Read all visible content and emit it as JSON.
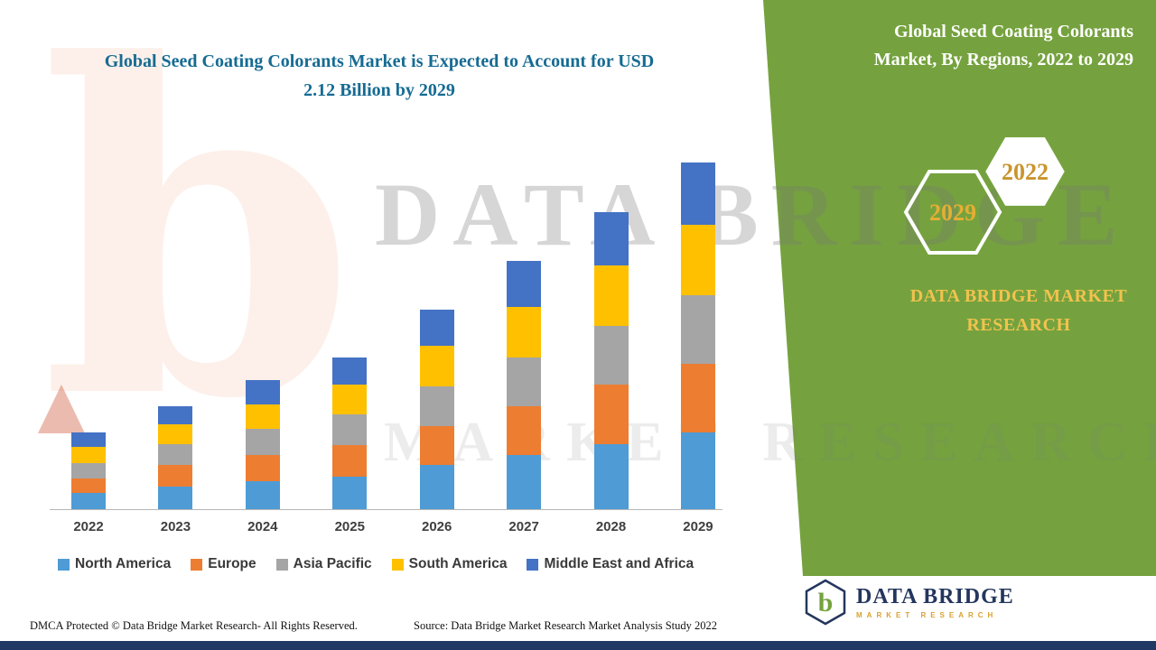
{
  "colors": {
    "green_panel": "#75A23E",
    "title_blue": "#166B93",
    "gold": "#D8A12F",
    "yellow_text": "#F2C24E",
    "navy": "#1F3864"
  },
  "left": {
    "title": "Global Seed Coating Colorants Market is Expected to Account for USD 2.12 Billion by 2029"
  },
  "right": {
    "title": "Global Seed Coating Colorants Market, By Regions, 2022 to 2029",
    "hexagon_back": "2022",
    "hexagon_front": "2029",
    "brand": "DATA BRIDGE MARKET RESEARCH"
  },
  "watermark": {
    "logo_letter": "b",
    "line1": "DATA BRIDGE",
    "line2": "MARKET RESEARCH"
  },
  "chart_data": {
    "type": "bar",
    "stacked": true,
    "title": "Global Seed Coating Colorants Market, By Regions, 2022 to 2029",
    "value_unit": "USD Billion",
    "categories": [
      "2022",
      "2023",
      "2024",
      "2025",
      "2026",
      "2027",
      "2028",
      "2029"
    ],
    "series": [
      {
        "name": "North America",
        "color": "#4E9BD5",
        "values": [
          0.1,
          0.14,
          0.17,
          0.2,
          0.27,
          0.33,
          0.4,
          0.47
        ]
      },
      {
        "name": "Europe",
        "color": "#ED7D31",
        "values": [
          0.09,
          0.13,
          0.16,
          0.19,
          0.24,
          0.3,
          0.36,
          0.42
        ]
      },
      {
        "name": "Asia Pacific",
        "color": "#A5A5A5",
        "values": [
          0.09,
          0.13,
          0.16,
          0.19,
          0.24,
          0.3,
          0.36,
          0.42
        ]
      },
      {
        "name": "South America",
        "color": "#FFC000",
        "values": [
          0.1,
          0.12,
          0.15,
          0.18,
          0.25,
          0.31,
          0.37,
          0.43
        ]
      },
      {
        "name": "Middle East and Africa",
        "color": "#4472C4",
        "values": [
          0.09,
          0.11,
          0.15,
          0.17,
          0.22,
          0.28,
          0.33,
          0.38
        ]
      }
    ],
    "totals": [
      0.47,
      0.63,
      0.79,
      0.93,
      1.22,
      1.52,
      1.82,
      2.12
    ],
    "ylim": [
      0,
      2.15
    ],
    "grid": false,
    "y_axis_visible": false,
    "legend_position": "bottom"
  },
  "footer": {
    "dmca": "DMCA Protected © Data Bridge Market Research- All Rights Reserved.",
    "source": "Source: Data Bridge Market Research Market Analysis Study 2022",
    "logo_letter": "b",
    "logo_text": "DATA BRIDGE",
    "logo_subtext": "MARKET RESEARCH"
  }
}
